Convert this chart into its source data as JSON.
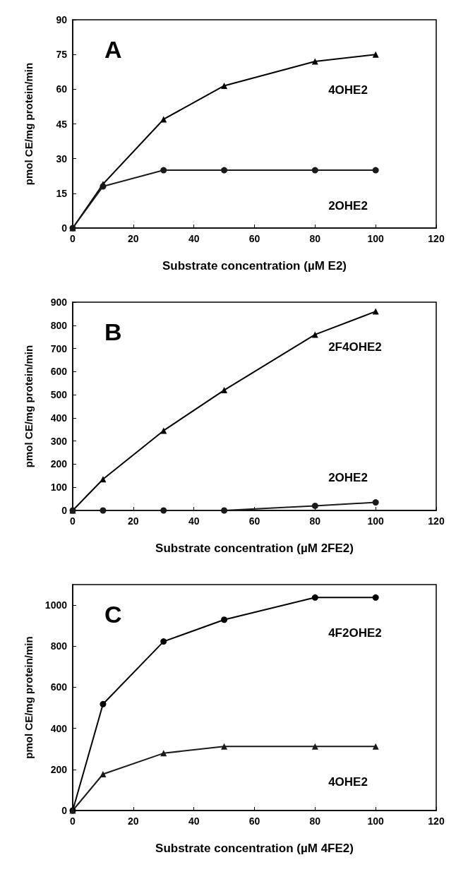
{
  "chart_data": [
    {
      "type": "line",
      "annotations": [
        "A"
      ],
      "xlabel": "Substrate concentration (µM E2)",
      "ylabel": "pmol CE/mg protein/min",
      "x": [
        0,
        10,
        30,
        50,
        80,
        100
      ],
      "xlim": [
        0,
        120
      ],
      "xticks": [
        0,
        20,
        40,
        60,
        80,
        100,
        120
      ],
      "ylim": [
        0,
        90
      ],
      "yticks": [
        0,
        15,
        30,
        45,
        60,
        75,
        90
      ],
      "grid": false,
      "legend": false,
      "line_style": "solid",
      "series": [
        {
          "name": "4OHE2",
          "color": "#000000",
          "marker": "triangle",
          "values": [
            0,
            19,
            47,
            61.5,
            72,
            75
          ]
        },
        {
          "name": "2OHE2",
          "color": "#1a1a1a",
          "marker": "circle",
          "values": [
            0,
            18,
            25,
            25,
            25,
            25
          ]
        }
      ]
    },
    {
      "type": "line",
      "annotations": [
        "B"
      ],
      "xlabel": "Substrate concentration (µM 2FE2)",
      "ylabel": "pmol CE/mg protein/min",
      "x": [
        0,
        10,
        30,
        50,
        80,
        100
      ],
      "xlim": [
        0,
        120
      ],
      "xticks": [
        0,
        20,
        40,
        60,
        80,
        100,
        120
      ],
      "ylim": [
        0,
        900
      ],
      "yticks": [
        0,
        100,
        200,
        300,
        400,
        500,
        600,
        700,
        800,
        900
      ],
      "grid": false,
      "legend": false,
      "line_style": "solid",
      "series": [
        {
          "name": "2F4OHE2",
          "color": "#000000",
          "marker": "triangle",
          "values": [
            0,
            135,
            345,
            520,
            760,
            860
          ]
        },
        {
          "name": "2OHE2",
          "color": "#1a1a1a",
          "marker": "circle",
          "values": [
            0,
            0,
            0,
            0,
            20,
            35
          ]
        }
      ]
    },
    {
      "type": "line",
      "annotations": [
        "C"
      ],
      "xlabel": "Substrate concentration (µM 4FE2)",
      "ylabel": "pmol CE/mg protein/min",
      "x": [
        0,
        10,
        30,
        50,
        80,
        100
      ],
      "xlim": [
        0,
        120
      ],
      "xticks": [
        0,
        20,
        40,
        60,
        80,
        100,
        120
      ],
      "ylim": [
        0,
        1100
      ],
      "yticks": [
        0,
        200,
        400,
        600,
        800,
        1000
      ],
      "grid": false,
      "legend": false,
      "line_style": "solid",
      "series": [
        {
          "name": "4F2OHE2",
          "color": "#000000",
          "marker": "circle",
          "values": [
            0,
            518,
            823,
            929,
            1037,
            1037
          ]
        },
        {
          "name": "4OHE2",
          "color": "#1a1a1a",
          "marker": "triangle",
          "values": [
            0,
            177,
            279,
            312,
            312,
            312
          ]
        }
      ]
    }
  ]
}
